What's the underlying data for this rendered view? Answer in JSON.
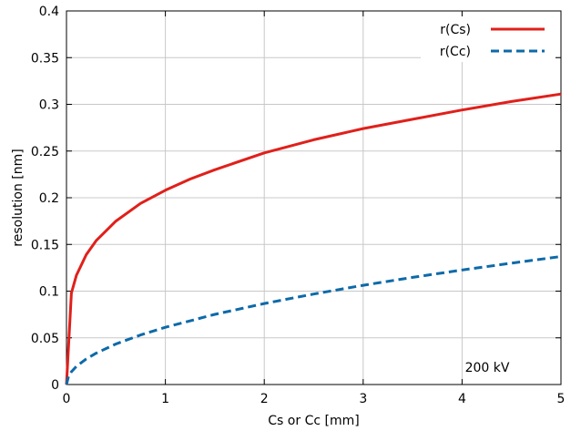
{
  "chart_data": {
    "type": "line",
    "xlabel": "Cs or Cc [mm]",
    "ylabel": "resolution [nm]",
    "xlim": [
      0,
      5
    ],
    "ylim": [
      0,
      0.4
    ],
    "xticks": [
      0,
      1,
      2,
      3,
      4,
      5
    ],
    "xtick_labels": [
      "0",
      "1",
      "2",
      "3",
      "4",
      "5"
    ],
    "yticks": [
      0,
      0.05,
      0.1,
      0.15,
      0.2,
      0.25,
      0.3,
      0.35,
      0.4
    ],
    "ytick_labels": [
      "0",
      "0.05",
      "0.1",
      "0.15",
      "0.2",
      "0.25",
      "0.3",
      "0.35",
      "0.4"
    ],
    "grid": true,
    "legend_position": "top-right",
    "annotation": "200 kV",
    "series": [
      {
        "name": "r(Cs)",
        "color": "#e0201b",
        "dash": "solid",
        "x": [
          0,
          0.05,
          0.1,
          0.2,
          0.3,
          0.5,
          0.75,
          1,
          1.25,
          1.5,
          2,
          2.5,
          3,
          3.5,
          4,
          4.5,
          5
        ],
        "y": [
          0,
          0.098,
          0.117,
          0.139,
          0.154,
          0.175,
          0.194,
          0.208,
          0.22,
          0.23,
          0.248,
          0.262,
          0.274,
          0.284,
          0.294,
          0.303,
          0.311
        ]
      },
      {
        "name": "r(Cc)",
        "color": "#0d6aa8",
        "dash": "dashed",
        "x": [
          0,
          0.02,
          0.05,
          0.1,
          0.2,
          0.3,
          0.5,
          0.75,
          1,
          1.5,
          2,
          2.5,
          3,
          3.5,
          4,
          4.5,
          5
        ],
        "y": [
          0,
          0.0087,
          0.0137,
          0.0194,
          0.0274,
          0.0336,
          0.0434,
          0.0531,
          0.0613,
          0.0751,
          0.0867,
          0.0969,
          0.1062,
          0.1147,
          0.1226,
          0.13,
          0.1371
        ]
      }
    ]
  }
}
